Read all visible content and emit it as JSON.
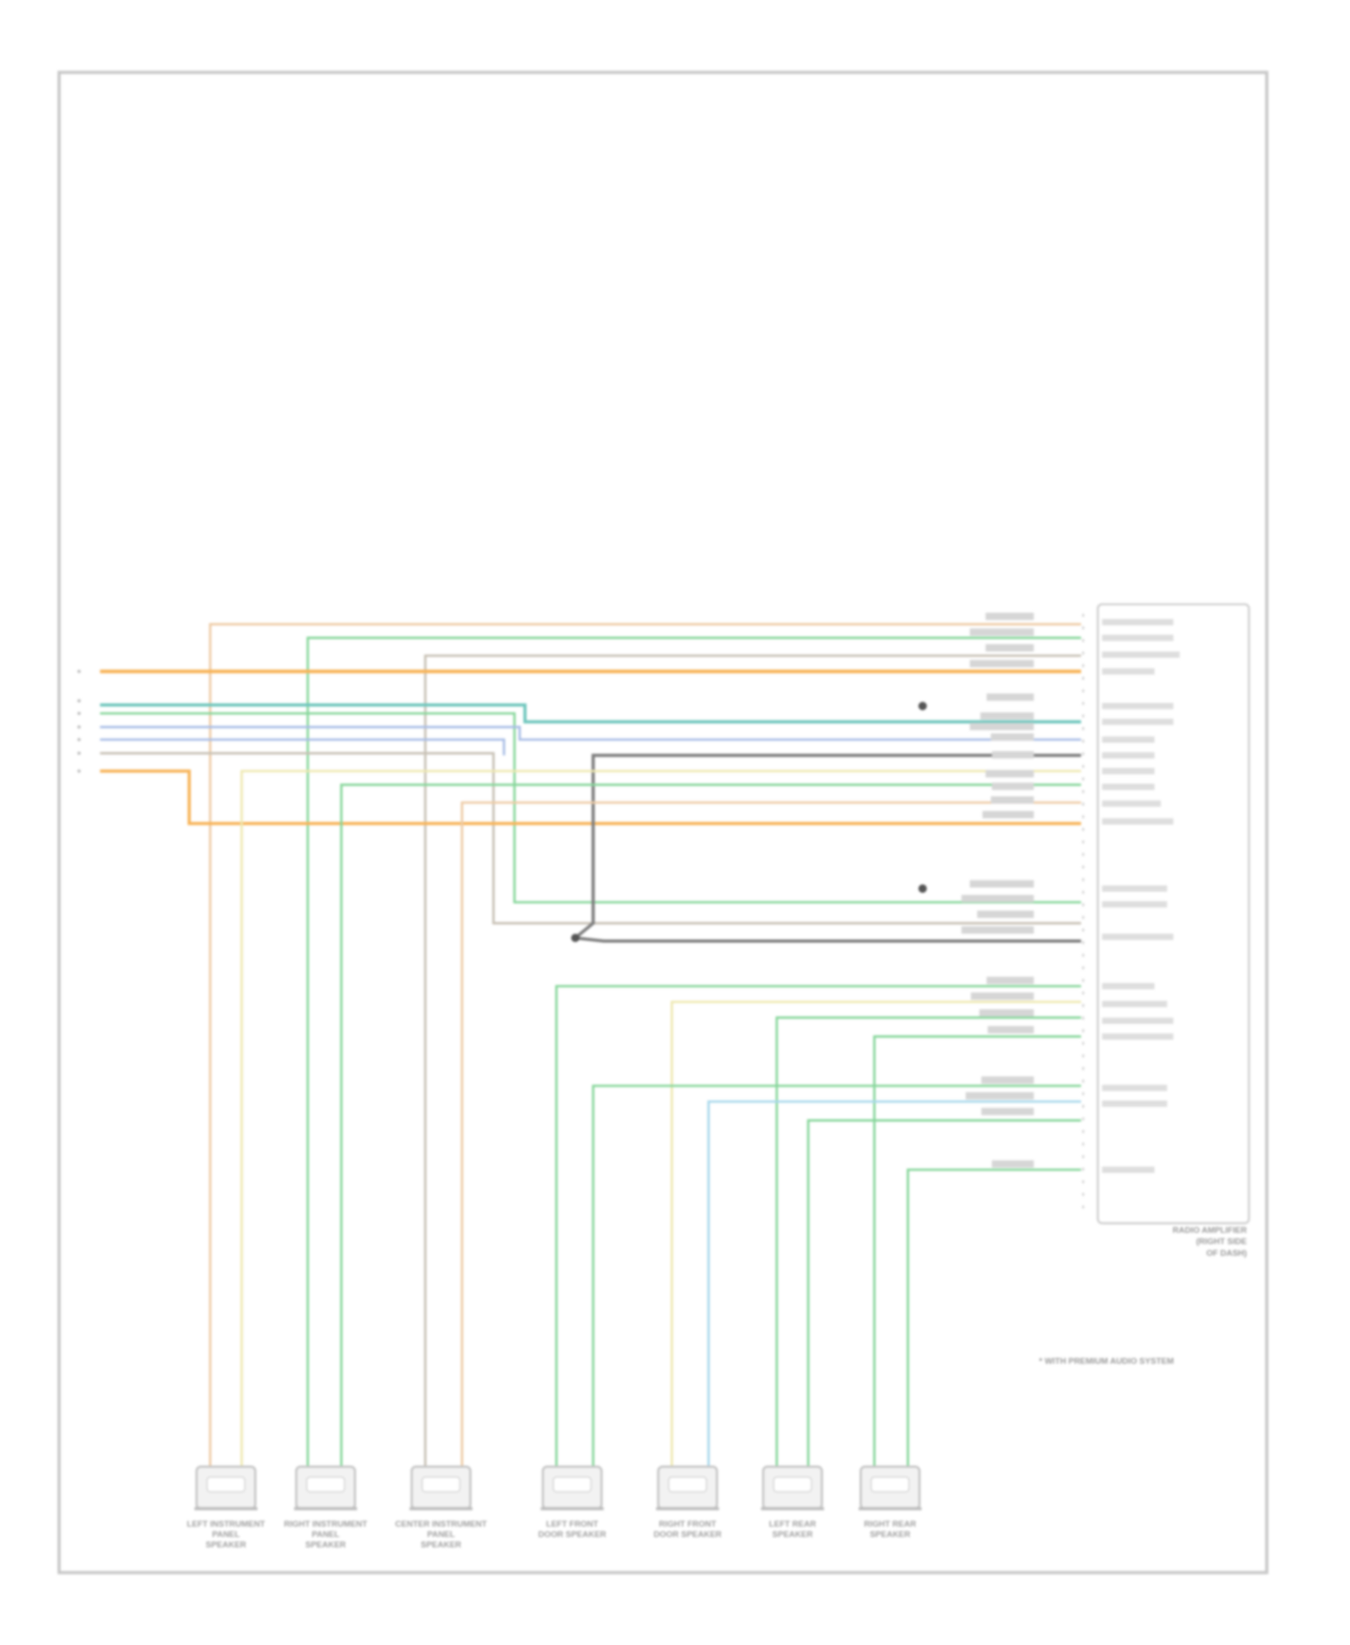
{
  "diagram": {
    "amplifier_label": [
      "RADIO AMPLIFIER",
      "(RIGHT SIDE",
      "OF DASH)"
    ],
    "footnote": "* WITH PREMIUM AUDIO SYSTEM",
    "speakers": [
      {
        "label": [
          "LEFT INSTRUMENT",
          "PANEL",
          "SPEAKER"
        ]
      },
      {
        "label": [
          "RIGHT INSTRUMENT",
          "PANEL",
          "SPEAKER"
        ]
      },
      {
        "label": [
          "CENTER INSTRUMENT",
          "PANEL",
          "SPEAKER"
        ]
      },
      {
        "label": [
          "LEFT FRONT",
          "DOOR SPEAKER"
        ]
      },
      {
        "label": [
          "RIGHT FRONT",
          "DOOR SPEAKER"
        ]
      },
      {
        "label": [
          "LEFT REAR",
          "SPEAKER"
        ]
      },
      {
        "label": [
          "RIGHT REAR",
          "SPEAKER"
        ]
      }
    ],
    "wire_colors": {
      "orange": "#f7b45a",
      "tan": "#eecba5",
      "green": "#86d69a",
      "teal": "#6fc6bd",
      "blue": "#a8bde6",
      "gray": "#c7c0b4",
      "dark_gray": "#7d7d7d",
      "yellow": "#eee8b0",
      "light_blue": "#a8d8ec",
      "frame": "#c8c8c8"
    }
  }
}
